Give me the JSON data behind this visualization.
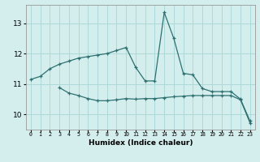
{
  "xlabel": "Humidex (Indice chaleur)",
  "x": [
    0,
    1,
    2,
    3,
    4,
    5,
    6,
    7,
    8,
    9,
    10,
    11,
    12,
    13,
    14,
    15,
    16,
    17,
    18,
    19,
    20,
    21,
    22,
    23
  ],
  "line1": [
    11.15,
    11.25,
    11.5,
    11.65,
    11.75,
    11.85,
    11.9,
    11.95,
    12.0,
    12.1,
    12.2,
    11.55,
    11.1,
    11.1,
    13.35,
    12.5,
    11.35,
    11.3,
    10.85,
    10.75,
    10.75,
    10.75,
    10.5,
    9.78
  ],
  "line2": [
    null,
    null,
    null,
    10.88,
    10.7,
    10.62,
    10.52,
    10.45,
    10.45,
    10.48,
    10.52,
    10.5,
    10.52,
    10.52,
    10.55,
    10.58,
    10.6,
    10.62,
    10.62,
    10.62,
    10.62,
    10.62,
    10.48,
    9.72
  ],
  "line_color": "#2e7070",
  "bg_color": "#d4eeee",
  "grid_color": "#aed8d8",
  "ylim": [
    9.5,
    13.6
  ],
  "yticks": [
    10,
    11,
    12,
    13
  ],
  "xlim": [
    -0.5,
    23.5
  ]
}
